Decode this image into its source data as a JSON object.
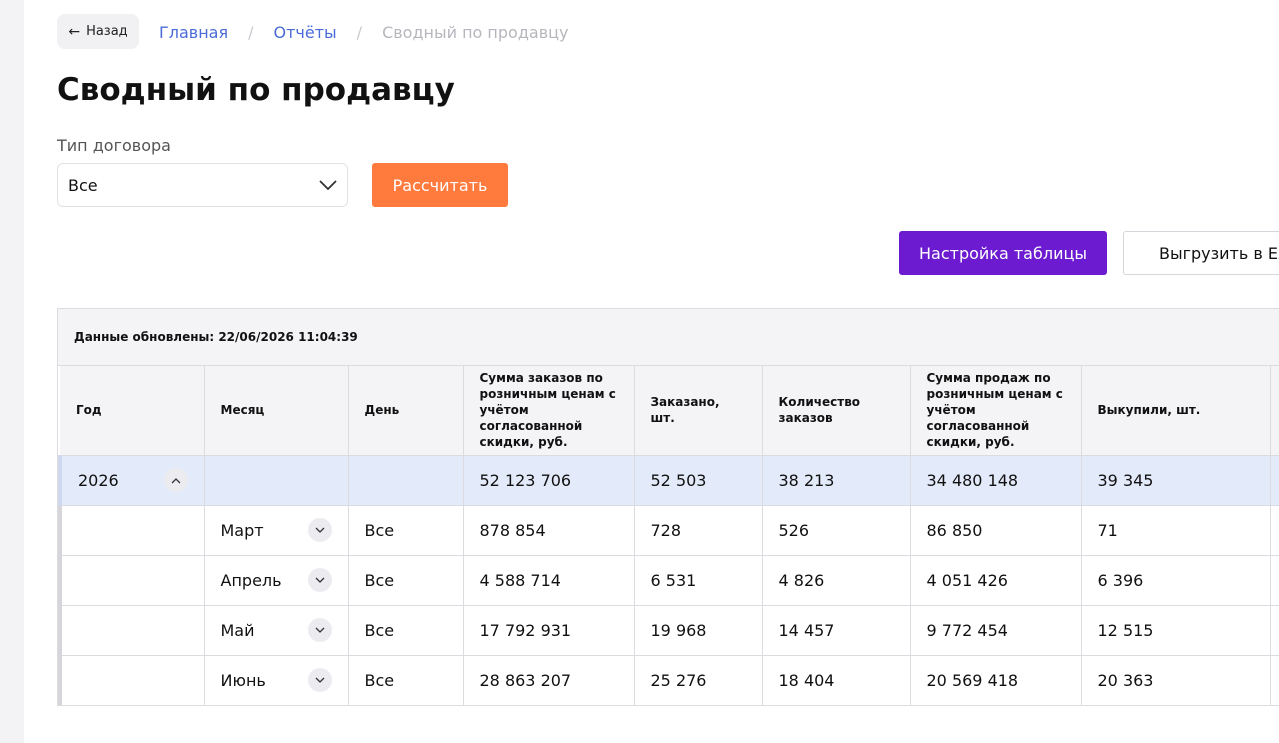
{
  "nav": {
    "back_label": "Назад",
    "breadcrumb": [
      "Главная",
      "Отчёты",
      "Сводный по продавцу"
    ]
  },
  "page": {
    "title": "Сводный по продавцу"
  },
  "filters": {
    "contract_type_label": "Тип договора",
    "contract_type_value": "Все",
    "calculate_label": "Рассчитать"
  },
  "toolbar": {
    "settings_label": "Настройка таблицы",
    "excel_label": "Выгрузить в Excel"
  },
  "table": {
    "updated_text": "Данные обновлены: 22/06/2026 11:04:39",
    "headers": [
      "Год",
      "Месяц",
      "День",
      "Сумма заказов по розничным ценам с учётом согласованной скидки, руб.",
      "Заказано, шт.",
      "Количество заказов",
      "Сумма продаж по розничным ценам с учётом согласованной скидки, руб.",
      "Выкупили, шт."
    ],
    "year_row": {
      "year": "2026",
      "values": [
        "52 123 706",
        "52 503",
        "38 213",
        "34 480 148",
        "39 345"
      ]
    },
    "month_rows": [
      {
        "month": "Март",
        "day": "Все",
        "values": [
          "878 854",
          "728",
          "526",
          "86 850",
          "71"
        ]
      },
      {
        "month": "Апрель",
        "day": "Все",
        "values": [
          "4 588 714",
          "6 531",
          "4 826",
          "4 051 426",
          "6 396"
        ]
      },
      {
        "month": "Май",
        "day": "Все",
        "values": [
          "17 792 931",
          "19 968",
          "14 457",
          "9 772 454",
          "12 515"
        ]
      },
      {
        "month": "Июнь",
        "day": "Все",
        "values": [
          "28 863 207",
          "25 276",
          "18 404",
          "20 569 418",
          "20 363"
        ]
      }
    ]
  },
  "icons": {
    "back": "arrow-left-icon",
    "select": "chevron-down-icon",
    "collapse": "chevron-up-icon",
    "expand": "chevron-down-icon"
  },
  "colors": {
    "accent_orange": "#ff7a3d",
    "accent_purple": "#6c1bd1",
    "link_blue": "#4a6bd8",
    "year_row_bg": "#e3eaf9"
  }
}
